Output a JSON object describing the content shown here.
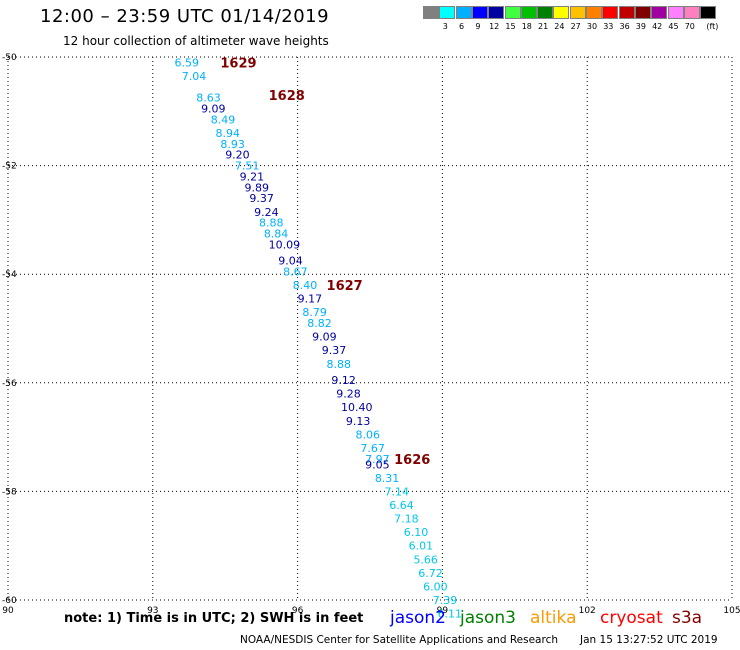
{
  "header": {
    "title": "12:00 – 23:59 UTC 01/14/2019",
    "subtitle": "12 hour collection of altimeter wave heights"
  },
  "legend": {
    "unit": "(ft)",
    "colors": [
      "#808080",
      "#00ffff",
      "#00b0ff",
      "#0000ff",
      "#0000a0",
      "#40ff40",
      "#00c000",
      "#008000",
      "#ffff00",
      "#ffc000",
      "#ff8000",
      "#ff0000",
      "#c00000",
      "#800000",
      "#a000a0",
      "#ff80ff",
      "#ff80c0",
      "#000000"
    ],
    "labels": [
      "3",
      "6",
      "9",
      "12",
      "15",
      "18",
      "21",
      "24",
      "27",
      "30",
      "33",
      "36",
      "39",
      "42",
      "45",
      "70"
    ]
  },
  "footer": {
    "note": "note: 1) Time is in UTC; 2) SWH is in feet",
    "satellites": [
      {
        "name": "jason2",
        "color": "#0000ff"
      },
      {
        "name": "jason3",
        "color": "#008000"
      },
      {
        "name": "altika",
        "color": "#ff9900"
      },
      {
        "name": "cryosat",
        "color": "#ff0000"
      },
      {
        "name": "s3a",
        "color": "#800000"
      }
    ],
    "credit": "NOAA/NESDIS Center for Satellite Applications and Research",
    "timestamp": "Jan 15 13:27:52 UTC 2019"
  },
  "chart_data": {
    "type": "scatter",
    "xlim": [
      90,
      105
    ],
    "ylim": [
      -60,
      -50
    ],
    "x_ticks": [
      "90",
      "93",
      "96",
      "99",
      "102",
      "105"
    ],
    "y_ticks": [
      "-50",
      "-52",
      "-54",
      "-56",
      "-58",
      "-60"
    ],
    "grid": true,
    "time_labels": [
      {
        "text": "1629",
        "lon": 94.4,
        "lat": -50.1
      },
      {
        "text": "1628",
        "lon": 95.4,
        "lat": -50.7
      },
      {
        "text": "1627",
        "lon": 96.6,
        "lat": -54.2
      },
      {
        "text": "1626",
        "lon": 98.0,
        "lat": -57.4
      }
    ],
    "points": [
      {
        "v": "6.59",
        "lon": 93.45,
        "lat": -50.1,
        "c": "#00b0ff"
      },
      {
        "v": "7.04",
        "lon": 93.6,
        "lat": -50.35,
        "c": "#00b0ff"
      },
      {
        "v": "8.63",
        "lon": 93.9,
        "lat": -50.75,
        "c": "#00b0ff"
      },
      {
        "v": "9.09",
        "lon": 94.0,
        "lat": -50.95,
        "c": "#0000a0"
      },
      {
        "v": "8.49",
        "lon": 94.2,
        "lat": -51.15,
        "c": "#00b0ff"
      },
      {
        "v": "8.94",
        "lon": 94.3,
        "lat": -51.4,
        "c": "#00b0ff"
      },
      {
        "v": "8.93",
        "lon": 94.4,
        "lat": -51.6,
        "c": "#00b0ff"
      },
      {
        "v": "9.20",
        "lon": 94.5,
        "lat": -51.8,
        "c": "#0000a0"
      },
      {
        "v": "7.51",
        "lon": 94.7,
        "lat": -52.0,
        "c": "#00b0ff"
      },
      {
        "v": "9.21",
        "lon": 94.8,
        "lat": -52.2,
        "c": "#0000a0"
      },
      {
        "v": "9.89",
        "lon": 94.9,
        "lat": -52.4,
        "c": "#0000a0"
      },
      {
        "v": "9.37",
        "lon": 95.0,
        "lat": -52.6,
        "c": "#0000a0"
      },
      {
        "v": "9.24",
        "lon": 95.1,
        "lat": -52.85,
        "c": "#0000a0"
      },
      {
        "v": "8.88",
        "lon": 95.2,
        "lat": -53.05,
        "c": "#00b0ff"
      },
      {
        "v": "8.84",
        "lon": 95.3,
        "lat": -53.25,
        "c": "#00b0ff"
      },
      {
        "v": "10.09",
        "lon": 95.4,
        "lat": -53.45,
        "c": "#0000a0"
      },
      {
        "v": "9.04",
        "lon": 95.6,
        "lat": -53.75,
        "c": "#0000a0"
      },
      {
        "v": "8.67",
        "lon": 95.7,
        "lat": -53.95,
        "c": "#00b0ff"
      },
      {
        "v": "8.40",
        "lon": 95.9,
        "lat": -54.2,
        "c": "#00b0ff"
      },
      {
        "v": "9.17",
        "lon": 96.0,
        "lat": -54.45,
        "c": "#0000a0"
      },
      {
        "v": "8.79",
        "lon": 96.1,
        "lat": -54.7,
        "c": "#00b0ff"
      },
      {
        "v": "8.82",
        "lon": 96.2,
        "lat": -54.9,
        "c": "#00b0ff"
      },
      {
        "v": "9.09",
        "lon": 96.3,
        "lat": -55.15,
        "c": "#0000a0"
      },
      {
        "v": "9.37",
        "lon": 96.5,
        "lat": -55.4,
        "c": "#0000a0"
      },
      {
        "v": "8.88",
        "lon": 96.6,
        "lat": -55.65,
        "c": "#00b0ff"
      },
      {
        "v": "9.12",
        "lon": 96.7,
        "lat": -55.95,
        "c": "#0000a0"
      },
      {
        "v": "9.28",
        "lon": 96.8,
        "lat": -56.2,
        "c": "#0000a0"
      },
      {
        "v": "10.40",
        "lon": 96.9,
        "lat": -56.45,
        "c": "#0000a0"
      },
      {
        "v": "9.13",
        "lon": 97.0,
        "lat": -56.7,
        "c": "#0000a0"
      },
      {
        "v": "8.06",
        "lon": 97.2,
        "lat": -56.95,
        "c": "#00b0ff"
      },
      {
        "v": "7.67",
        "lon": 97.3,
        "lat": -57.2,
        "c": "#00b0ff"
      },
      {
        "v": "7.97",
        "lon": 97.4,
        "lat": -57.4,
        "c": "#00b0ff"
      },
      {
        "v": "9.05",
        "lon": 97.4,
        "lat": -57.5,
        "c": "#0000a0"
      },
      {
        "v": "8.31",
        "lon": 97.6,
        "lat": -57.75,
        "c": "#00b0ff"
      },
      {
        "v": "7.14",
        "lon": 97.8,
        "lat": -58.0,
        "c": "#00c8e8"
      },
      {
        "v": "6.64",
        "lon": 97.9,
        "lat": -58.25,
        "c": "#00c8e8"
      },
      {
        "v": "7.18",
        "lon": 98.0,
        "lat": -58.5,
        "c": "#00c8e8"
      },
      {
        "v": "6.10",
        "lon": 98.2,
        "lat": -58.75,
        "c": "#00c8e8"
      },
      {
        "v": "6.01",
        "lon": 98.3,
        "lat": -59.0,
        "c": "#00c8e8"
      },
      {
        "v": "5.66",
        "lon": 98.4,
        "lat": -59.25,
        "c": "#00c8e8"
      },
      {
        "v": "6.72",
        "lon": 98.5,
        "lat": -59.5,
        "c": "#00c8e8"
      },
      {
        "v": "6.00",
        "lon": 98.6,
        "lat": -59.75,
        "c": "#00c8e8"
      },
      {
        "v": "7.39",
        "lon": 98.8,
        "lat": -60.0,
        "c": "#00c8e8"
      },
      {
        "v": "6.11",
        "lon": 98.9,
        "lat": -60.25,
        "c": "#00c8e8"
      }
    ],
    "time_label_color": "#800000"
  }
}
